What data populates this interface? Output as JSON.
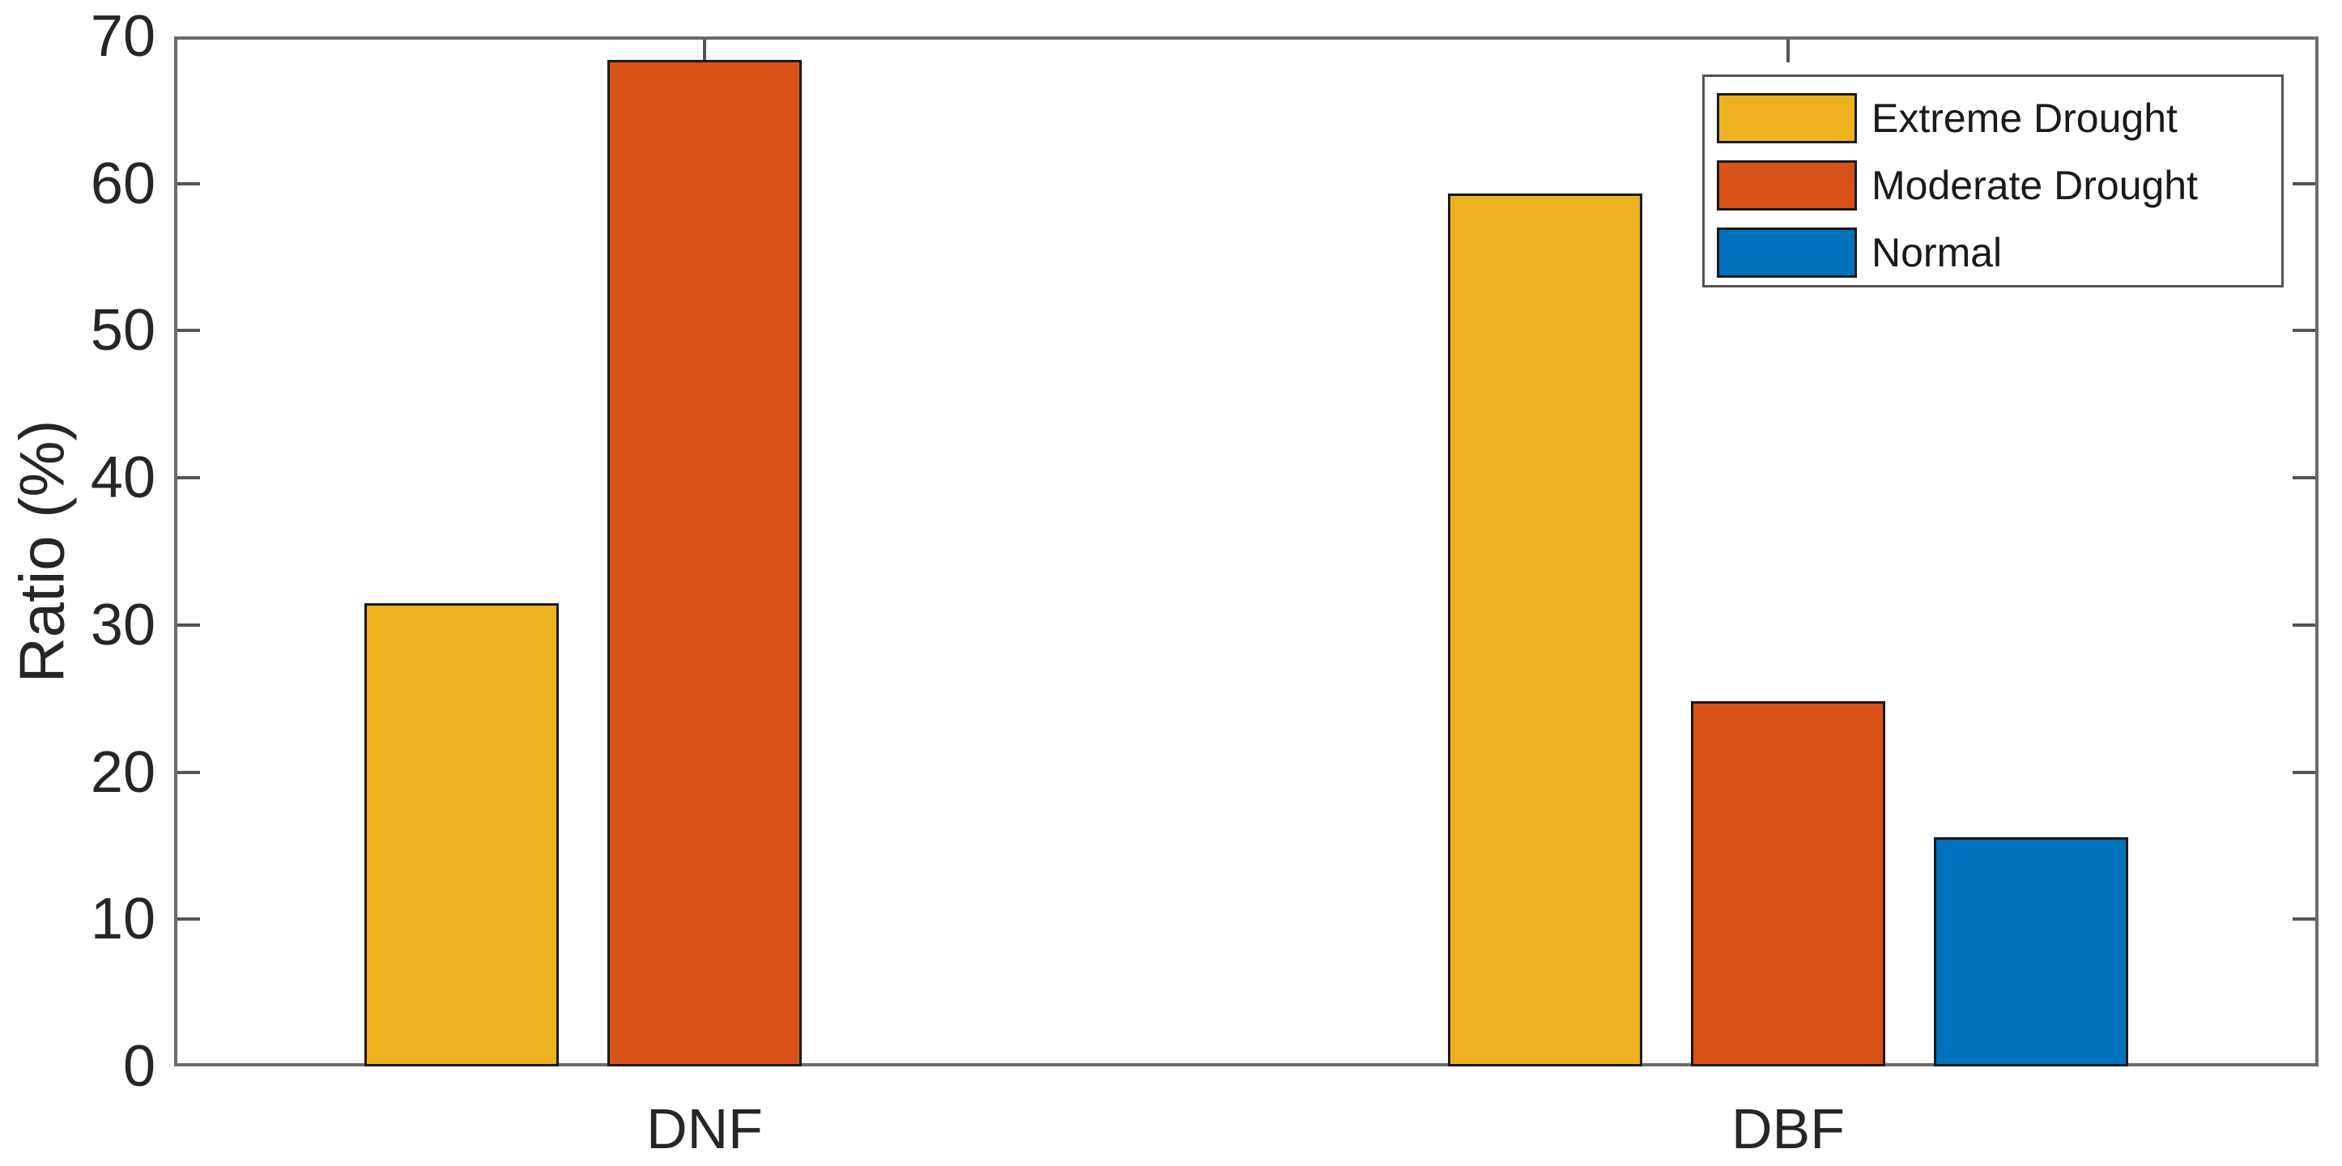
{
  "chart_data": {
    "type": "bar",
    "title": "",
    "categories": [
      "DNF",
      "DBF"
    ],
    "series": [
      {
        "name": "Extreme Drought",
        "color": "#EDB120",
        "values": [
          31.5,
          59.3
        ]
      },
      {
        "name": "Moderate Drought",
        "color": "#D95319",
        "values": [
          68.4,
          24.8
        ]
      },
      {
        "name": "Normal",
        "color": "#0072BD",
        "values": [
          0,
          15.6
        ]
      }
    ],
    "xlabel": "",
    "ylabel": "Ratio (%)",
    "ylim": [
      0,
      70
    ],
    "yticks": [
      0,
      10,
      20,
      30,
      40,
      50,
      60,
      70
    ],
    "grid": false,
    "legend_position": "top-right",
    "bar_edge_color": "#1a1a1a",
    "axis_color": "#6b6b6b",
    "text_color": "#262626"
  }
}
